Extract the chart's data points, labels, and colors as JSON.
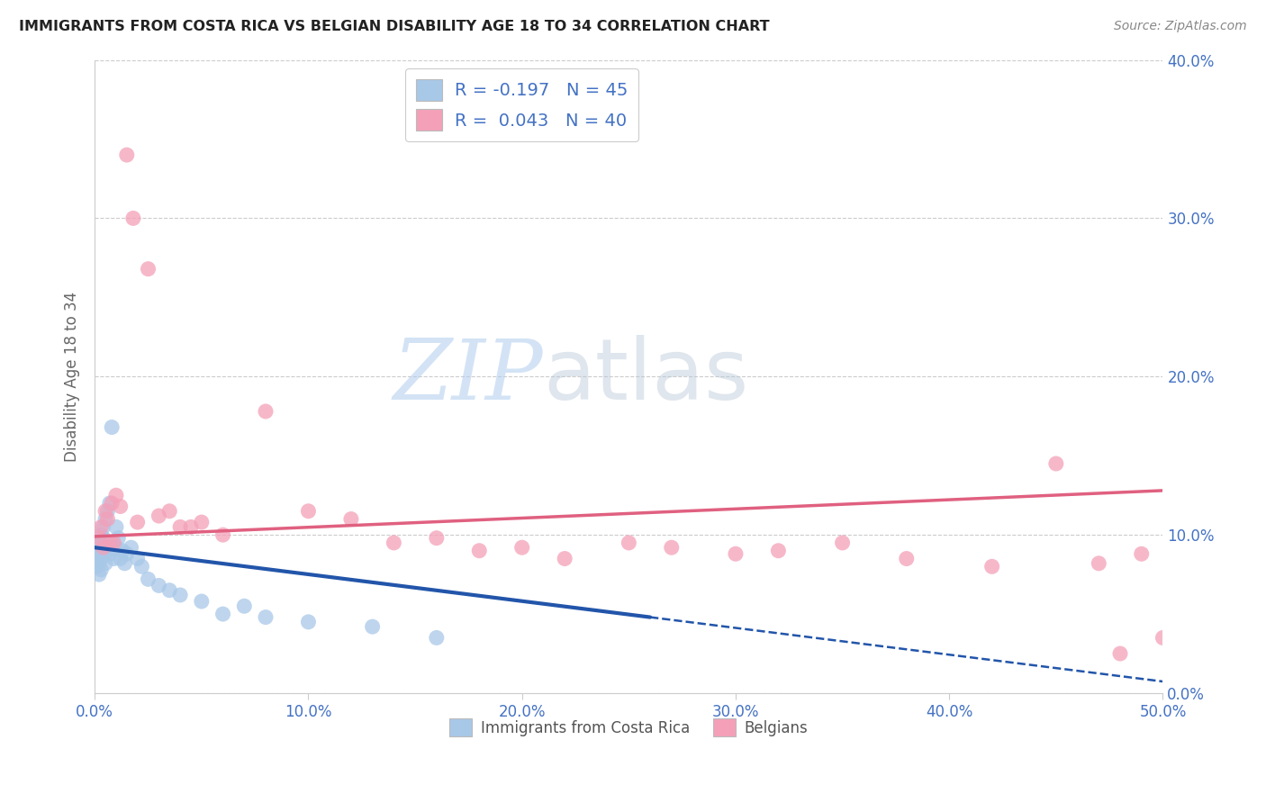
{
  "title": "IMMIGRANTS FROM COSTA RICA VS BELGIAN DISABILITY AGE 18 TO 34 CORRELATION CHART",
  "source": "Source: ZipAtlas.com",
  "ylabel": "Disability Age 18 to 34",
  "legend1_label": "R = -0.197   N = 45",
  "legend2_label": "R =  0.043   N = 40",
  "blue_color": "#a8c8e8",
  "pink_color": "#f4a0b8",
  "trend_blue": "#2255aa",
  "trend_pink": "#e06080",
  "background": "#ffffff",
  "blue_scatter_x": [
    0.001,
    0.001,
    0.001,
    0.002,
    0.002,
    0.002,
    0.002,
    0.003,
    0.003,
    0.003,
    0.003,
    0.004,
    0.004,
    0.004,
    0.005,
    0.005,
    0.005,
    0.006,
    0.006,
    0.007,
    0.007,
    0.008,
    0.008,
    0.009,
    0.01,
    0.01,
    0.011,
    0.012,
    0.013,
    0.014,
    0.015,
    0.017,
    0.02,
    0.022,
    0.025,
    0.03,
    0.035,
    0.04,
    0.05,
    0.06,
    0.07,
    0.08,
    0.1,
    0.13,
    0.16
  ],
  "blue_scatter_y": [
    0.09,
    0.085,
    0.08,
    0.095,
    0.088,
    0.082,
    0.075,
    0.1,
    0.092,
    0.085,
    0.078,
    0.105,
    0.098,
    0.088,
    0.11,
    0.095,
    0.082,
    0.115,
    0.09,
    0.12,
    0.088,
    0.168,
    0.095,
    0.085,
    0.105,
    0.092,
    0.098,
    0.085,
    0.09,
    0.082,
    0.088,
    0.092,
    0.085,
    0.08,
    0.072,
    0.068,
    0.065,
    0.062,
    0.058,
    0.05,
    0.055,
    0.048,
    0.045,
    0.042,
    0.035
  ],
  "pink_scatter_x": [
    0.002,
    0.003,
    0.004,
    0.005,
    0.006,
    0.007,
    0.008,
    0.009,
    0.01,
    0.012,
    0.015,
    0.018,
    0.02,
    0.025,
    0.03,
    0.035,
    0.04,
    0.045,
    0.05,
    0.06,
    0.08,
    0.1,
    0.12,
    0.14,
    0.16,
    0.18,
    0.2,
    0.22,
    0.25,
    0.27,
    0.3,
    0.32,
    0.35,
    0.38,
    0.42,
    0.45,
    0.47,
    0.48,
    0.49,
    0.5
  ],
  "pink_scatter_y": [
    0.098,
    0.105,
    0.092,
    0.115,
    0.11,
    0.095,
    0.12,
    0.095,
    0.125,
    0.118,
    0.34,
    0.3,
    0.108,
    0.268,
    0.112,
    0.115,
    0.105,
    0.105,
    0.108,
    0.1,
    0.178,
    0.115,
    0.11,
    0.095,
    0.098,
    0.09,
    0.092,
    0.085,
    0.095,
    0.092,
    0.088,
    0.09,
    0.095,
    0.085,
    0.08,
    0.145,
    0.082,
    0.025,
    0.088,
    0.035
  ],
  "xlim": [
    0,
    0.5
  ],
  "ylim": [
    0,
    0.4
  ],
  "blue_trend_x0": 0.0,
  "blue_trend_y0": 0.092,
  "blue_trend_x1": 0.26,
  "blue_trend_y1": 0.048,
  "blue_trend_xdash_end": 0.5,
  "blue_trend_ydash_end": 0.005,
  "pink_trend_x0": 0.0,
  "pink_trend_y0": 0.099,
  "pink_trend_x1": 0.5,
  "pink_trend_y1": 0.128
}
